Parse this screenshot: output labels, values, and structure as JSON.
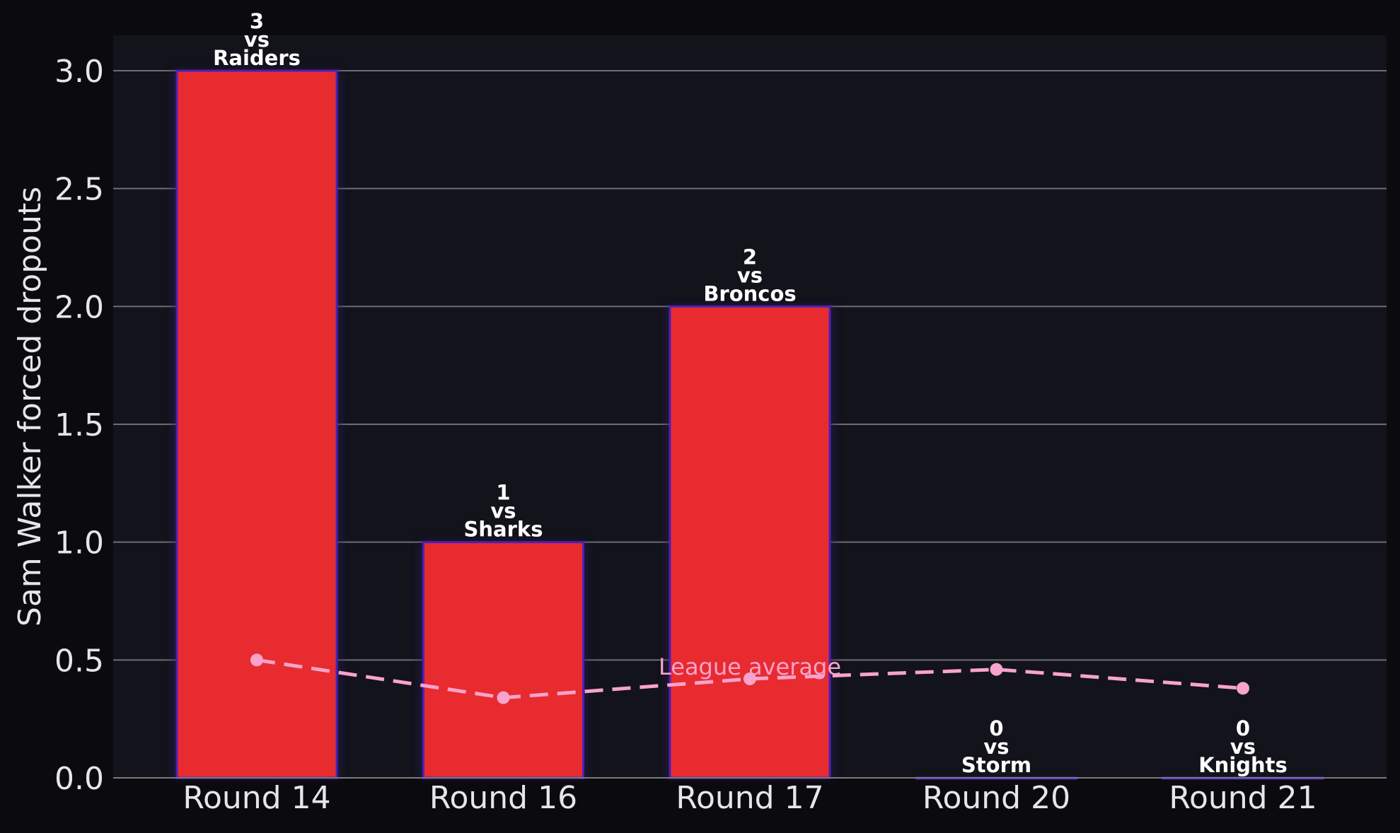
{
  "chart_data": {
    "type": "bar",
    "title": "",
    "xlabel": "",
    "ylabel": "Sam Walker forced dropouts",
    "categories": [
      "Round 14",
      "Round 16",
      "Round 17",
      "Round 20",
      "Round 21"
    ],
    "opponents": [
      "Raiders",
      "Sharks",
      "Broncos",
      "Storm",
      "Knights"
    ],
    "series": [
      {
        "type": "bar",
        "values": [
          3,
          1,
          2,
          0,
          0
        ],
        "data_labels": [
          "3\nvs\nRaiders",
          "1\nvs\nSharks",
          "2\nvs\nBroncos",
          "0\nvs\nStorm",
          "0\nvs\nKnights"
        ]
      },
      {
        "name": "League average",
        "type": "line",
        "style": "dashed",
        "values": [
          0.5,
          0.34,
          0.42,
          0.46,
          0.38
        ]
      }
    ],
    "ylim": [
      0,
      3.15
    ],
    "yticks": [
      0.0,
      0.5,
      1.0,
      1.5,
      2.0,
      2.5,
      3.0
    ],
    "ytick_labels": [
      "0.0",
      "0.5",
      "1.0",
      "1.5",
      "2.0",
      "2.5",
      "3.0"
    ],
    "grid": "horizontal",
    "colors": {
      "figure_background": "#0b0b0f",
      "plot_background": "#12131b",
      "bar_fill": "#e82b2f",
      "bar_edge": "#4b20b8",
      "line": "#f7a3cc",
      "text": "#e6e6e6",
      "data_label": "#ffffff",
      "grid": "#6e6e74"
    }
  }
}
